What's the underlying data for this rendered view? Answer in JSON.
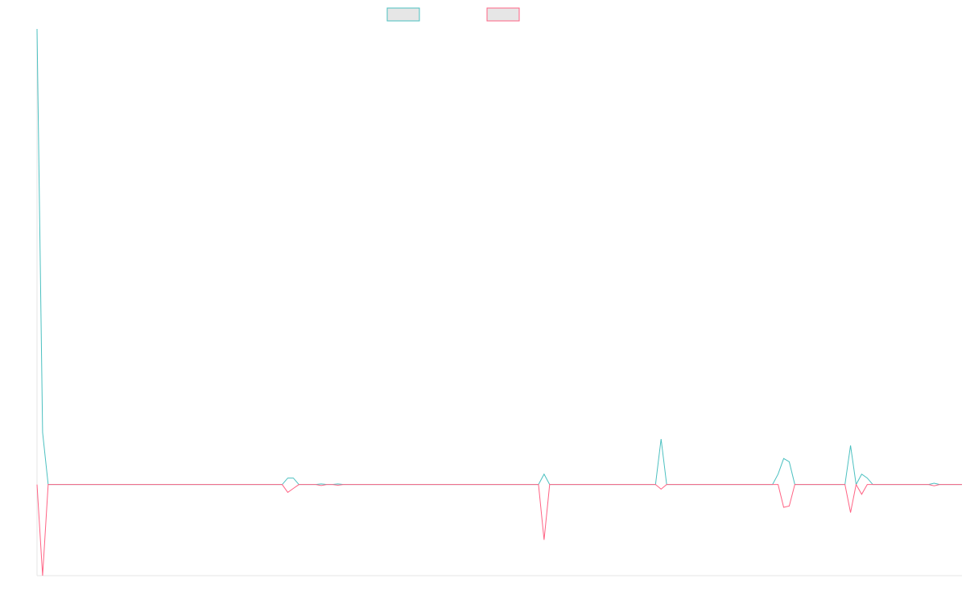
{
  "chart_data": {
    "type": "line",
    "title": "",
    "xlabel": "",
    "ylabel": "",
    "grid": false,
    "legend": "top-center",
    "x_count": 167,
    "ylim": [
      -14,
      70
    ],
    "series": [
      {
        "color": "#4bc0c0",
        "fill": "#e6e6e6",
        "points": [
          [
            0,
            70
          ],
          [
            1,
            8
          ],
          [
            2,
            0
          ],
          [
            44,
            0
          ],
          [
            45,
            1
          ],
          [
            46,
            1
          ],
          [
            47,
            0
          ],
          [
            50,
            0
          ],
          [
            51,
            0.1
          ],
          [
            52,
            0
          ],
          [
            53,
            0
          ],
          [
            54,
            0.1
          ],
          [
            55,
            0
          ],
          [
            90,
            0
          ],
          [
            91,
            1.6
          ],
          [
            92,
            0
          ],
          [
            111,
            0
          ],
          [
            112,
            7
          ],
          [
            113,
            0
          ],
          [
            132,
            0
          ],
          [
            133,
            1.6
          ],
          [
            134,
            4
          ],
          [
            135,
            3.5
          ],
          [
            136,
            0
          ],
          [
            145,
            0
          ],
          [
            146,
            6
          ],
          [
            147,
            0
          ],
          [
            148,
            1.6
          ],
          [
            149,
            1
          ],
          [
            150,
            0
          ],
          [
            160,
            0
          ],
          [
            161,
            0.2
          ],
          [
            162,
            0
          ],
          [
            166,
            0
          ]
        ]
      },
      {
        "color": "#ff6384",
        "fill": "#e6e6e6",
        "points": [
          [
            0,
            0
          ],
          [
            1,
            -14
          ],
          [
            2,
            0
          ],
          [
            44,
            0
          ],
          [
            45,
            -1.2
          ],
          [
            46,
            -0.6
          ],
          [
            47,
            0
          ],
          [
            50,
            0
          ],
          [
            51,
            -0.15
          ],
          [
            52,
            0
          ],
          [
            53,
            0
          ],
          [
            54,
            -0.1
          ],
          [
            55,
            0
          ],
          [
            90,
            0
          ],
          [
            91,
            -8.5
          ],
          [
            92,
            0
          ],
          [
            111,
            0
          ],
          [
            112,
            -0.7
          ],
          [
            113,
            0
          ],
          [
            133,
            0
          ],
          [
            134,
            -3.5
          ],
          [
            135,
            -3.3
          ],
          [
            136,
            0
          ],
          [
            145,
            0
          ],
          [
            146,
            -4.3
          ],
          [
            147,
            0
          ],
          [
            148,
            -1.5
          ],
          [
            149,
            0
          ],
          [
            160,
            0
          ],
          [
            161,
            -0.2
          ],
          [
            162,
            0
          ],
          [
            166,
            0
          ]
        ]
      }
    ]
  }
}
